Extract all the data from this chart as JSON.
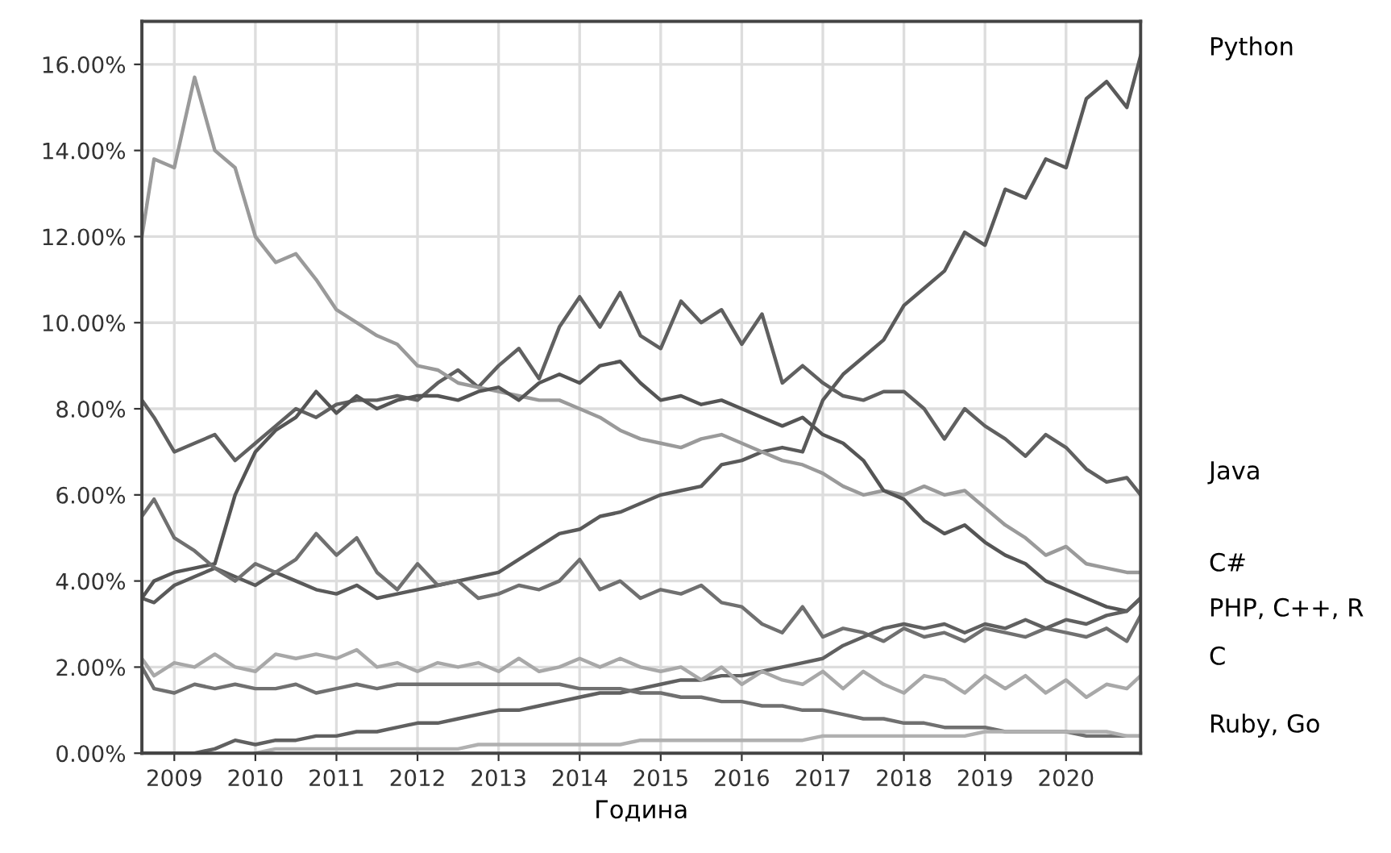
{
  "chart_data": {
    "type": "line",
    "xlabel": "Година",
    "x": [
      2008.6,
      2008.75,
      2009.0,
      2009.25,
      2009.5,
      2009.75,
      2010.0,
      2010.25,
      2010.5,
      2010.75,
      2011.0,
      2011.25,
      2011.5,
      2011.75,
      2012.0,
      2012.25,
      2012.5,
      2012.75,
      2013.0,
      2013.25,
      2013.5,
      2013.75,
      2014.0,
      2014.25,
      2014.5,
      2014.75,
      2015.0,
      2015.25,
      2015.5,
      2015.75,
      2016.0,
      2016.25,
      2016.5,
      2016.75,
      2017.0,
      2017.25,
      2017.5,
      2017.75,
      2018.0,
      2018.25,
      2018.5,
      2018.75,
      2019.0,
      2019.25,
      2019.5,
      2019.75,
      2020.0,
      2020.25,
      2020.5,
      2020.75,
      2020.92
    ],
    "series": [
      {
        "color": "#5a5a5a",
        "values": [
          3.6,
          3.5,
          3.9,
          4.1,
          4.3,
          4.1,
          3.9,
          4.2,
          4.0,
          3.8,
          3.7,
          3.9,
          3.6,
          3.7,
          3.8,
          3.9,
          4.0,
          4.1,
          4.2,
          4.5,
          4.8,
          5.1,
          5.2,
          5.5,
          5.6,
          5.8,
          6.0,
          6.1,
          6.2,
          6.7,
          6.8,
          7.0,
          7.1,
          7.0,
          8.2,
          8.8,
          9.2,
          9.6,
          10.4,
          10.8,
          11.2,
          12.1,
          11.8,
          13.1,
          12.9,
          13.8,
          13.6,
          15.2,
          15.6,
          15.0,
          16.2
        ]
      },
      {
        "color": "#606060",
        "values": [
          8.2,
          7.8,
          7.0,
          7.2,
          7.4,
          6.8,
          7.2,
          7.6,
          8.0,
          7.8,
          8.1,
          8.2,
          8.2,
          8.3,
          8.2,
          8.6,
          8.9,
          8.5,
          9.0,
          9.4,
          8.7,
          9.9,
          10.6,
          9.9,
          10.7,
          9.7,
          9.4,
          10.5,
          10.0,
          10.3,
          9.5,
          10.2,
          8.6,
          9.0,
          8.6,
          8.3,
          8.2,
          8.4,
          8.4,
          8.0,
          7.3,
          8.0,
          7.6,
          7.3,
          6.9,
          7.4,
          7.1,
          6.6,
          6.3,
          6.4,
          6.0
        ]
      },
      {
        "color": "#9a9a9a",
        "values": [
          12.0,
          13.8,
          13.6,
          15.7,
          14.0,
          13.6,
          12.0,
          11.4,
          11.6,
          11.0,
          10.3,
          10.0,
          9.7,
          9.5,
          9.0,
          8.9,
          8.6,
          8.5,
          8.4,
          8.3,
          8.2,
          8.2,
          8.0,
          7.8,
          7.5,
          7.3,
          7.2,
          7.1,
          7.3,
          7.4,
          7.2,
          7.0,
          6.8,
          6.7,
          6.5,
          6.2,
          6.0,
          6.1,
          6.0,
          6.2,
          6.0,
          6.1,
          5.7,
          5.3,
          5.0,
          4.6,
          4.8,
          4.4,
          4.3,
          4.2,
          4.2
        ]
      },
      {
        "color": "#555555",
        "values": [
          3.6,
          4.0,
          4.2,
          4.3,
          4.4,
          6.0,
          7.0,
          7.5,
          7.8,
          8.4,
          7.9,
          8.3,
          8.0,
          8.2,
          8.3,
          8.3,
          8.2,
          8.4,
          8.5,
          8.2,
          8.6,
          8.8,
          8.6,
          9.0,
          9.1,
          8.6,
          8.2,
          8.3,
          8.1,
          8.2,
          8.0,
          7.8,
          7.6,
          7.8,
          7.4,
          7.2,
          6.8,
          6.1,
          5.9,
          5.4,
          5.1,
          5.3,
          4.9,
          4.6,
          4.4,
          4.0,
          3.8,
          3.6,
          3.4,
          3.3,
          3.6
        ]
      },
      {
        "color": "#707070",
        "values": [
          5.5,
          5.9,
          5.0,
          4.7,
          4.3,
          4.0,
          4.4,
          4.2,
          4.5,
          5.1,
          4.6,
          5.0,
          4.2,
          3.8,
          4.4,
          3.9,
          4.0,
          3.6,
          3.7,
          3.9,
          3.8,
          4.0,
          4.5,
          3.8,
          4.0,
          3.6,
          3.8,
          3.7,
          3.9,
          3.5,
          3.4,
          3.0,
          2.8,
          3.4,
          2.7,
          2.9,
          2.8,
          2.6,
          2.9,
          2.7,
          2.8,
          2.6,
          2.9,
          2.8,
          2.7,
          2.9,
          2.8,
          2.7,
          2.9,
          2.6,
          3.2
        ]
      },
      {
        "color": "#606060",
        "values": [
          0.0,
          0.0,
          0.0,
          0.0,
          0.1,
          0.3,
          0.2,
          0.3,
          0.3,
          0.4,
          0.4,
          0.5,
          0.5,
          0.6,
          0.7,
          0.7,
          0.8,
          0.9,
          1.0,
          1.0,
          1.1,
          1.2,
          1.3,
          1.4,
          1.4,
          1.5,
          1.6,
          1.7,
          1.7,
          1.8,
          1.8,
          1.9,
          2.0,
          2.1,
          2.2,
          2.5,
          2.7,
          2.9,
          3.0,
          2.9,
          3.0,
          2.8,
          3.0,
          2.9,
          3.1,
          2.9,
          3.1,
          3.0,
          3.2,
          3.3,
          3.6
        ]
      },
      {
        "color": "#a8a8a8",
        "values": [
          2.2,
          1.8,
          2.1,
          2.0,
          2.3,
          2.0,
          1.9,
          2.3,
          2.2,
          2.3,
          2.2,
          2.4,
          2.0,
          2.1,
          1.9,
          2.1,
          2.0,
          2.1,
          1.9,
          2.2,
          1.9,
          2.0,
          2.2,
          2.0,
          2.2,
          2.0,
          1.9,
          2.0,
          1.7,
          2.0,
          1.6,
          1.9,
          1.7,
          1.6,
          1.9,
          1.5,
          1.9,
          1.6,
          1.4,
          1.8,
          1.7,
          1.4,
          1.8,
          1.5,
          1.8,
          1.4,
          1.7,
          1.3,
          1.6,
          1.5,
          1.8
        ]
      },
      {
        "color": "#707070",
        "values": [
          2.0,
          1.5,
          1.4,
          1.6,
          1.5,
          1.6,
          1.5,
          1.5,
          1.6,
          1.4,
          1.5,
          1.6,
          1.5,
          1.6,
          1.6,
          1.6,
          1.6,
          1.6,
          1.6,
          1.6,
          1.6,
          1.6,
          1.5,
          1.5,
          1.5,
          1.4,
          1.4,
          1.3,
          1.3,
          1.2,
          1.2,
          1.1,
          1.1,
          1.0,
          1.0,
          0.9,
          0.8,
          0.8,
          0.7,
          0.7,
          0.6,
          0.6,
          0.6,
          0.5,
          0.5,
          0.5,
          0.5,
          0.4,
          0.4,
          0.4,
          0.4
        ]
      },
      {
        "color": "#b0b0b0",
        "values": [
          null,
          null,
          null,
          null,
          null,
          null,
          0.0,
          0.1,
          0.1,
          0.1,
          0.1,
          0.1,
          0.1,
          0.1,
          0.1,
          0.1,
          0.1,
          0.2,
          0.2,
          0.2,
          0.2,
          0.2,
          0.2,
          0.2,
          0.2,
          0.3,
          0.3,
          0.3,
          0.3,
          0.3,
          0.3,
          0.3,
          0.3,
          0.3,
          0.4,
          0.4,
          0.4,
          0.4,
          0.4,
          0.4,
          0.4,
          0.4,
          0.5,
          0.5,
          0.5,
          0.5,
          0.5,
          0.5,
          0.5,
          0.4,
          0.4
        ]
      }
    ],
    "annotations": [
      "Python",
      "Java",
      "C#",
      "PHP, C++, R",
      "C",
      "Ruby, Go"
    ],
    "xlim": [
      2008.6,
      2020.92
    ],
    "ylim": [
      0,
      17
    ],
    "xticks": [
      2009,
      2010,
      2011,
      2012,
      2013,
      2014,
      2015,
      2016,
      2017,
      2018,
      2019,
      2020
    ],
    "yticks": [
      {
        "value": 0,
        "label": "0.00%"
      },
      {
        "value": 2,
        "label": "2.00%"
      },
      {
        "value": 4,
        "label": "4.00%"
      },
      {
        "value": 6,
        "label": "6.00%"
      },
      {
        "value": 8,
        "label": "8.00%"
      },
      {
        "value": 10,
        "label": "10.00%"
      },
      {
        "value": 12,
        "label": "12.00%"
      },
      {
        "value": 14,
        "label": "14.00%"
      },
      {
        "value": 16,
        "label": "16.00%"
      }
    ],
    "grid": true
  }
}
